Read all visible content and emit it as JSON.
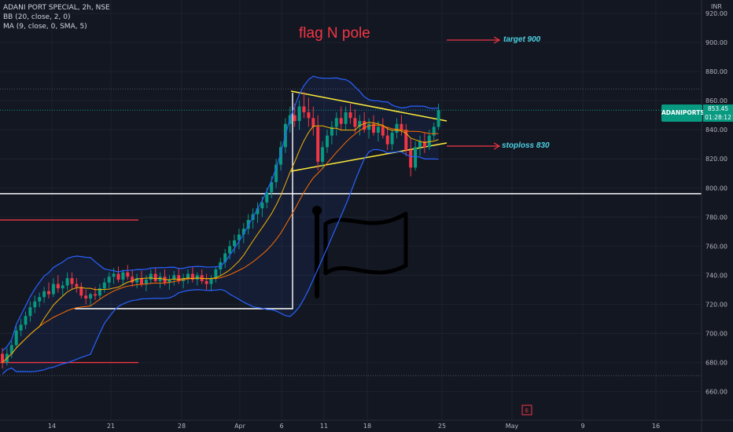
{
  "legend": {
    "line1": "ADANI PORT SPECIAL, 2h, NSE",
    "line2": "BB (20, close, 2, 0)",
    "line3": "MA (9, close, 0, SMA, 5)"
  },
  "annotations": {
    "title": "flag N pole",
    "target": "target 900",
    "stoploss": "stoploss 830"
  },
  "currency": "INR",
  "symbol_badge": "ADANIPORTS",
  "price_badge": {
    "price": "853.45",
    "countdown": "01:28:12"
  },
  "events_marker": "E",
  "colors": {
    "background": "#131722",
    "up": "#089981",
    "down": "#f23645",
    "bb_band": "#2962ff",
    "ma": "#f7b500",
    "bb_basis": "#ff6d00",
    "trendline": "#ffeb3b",
    "annotation_red": "#f23645",
    "annotation_cyan": "#4dd0e1"
  },
  "chart_data": {
    "type": "candlestick",
    "title": "",
    "symbol": "ADANI PORT SPECIAL, 2h, NSE",
    "x_tick_labels": [
      "14",
      "21",
      "28",
      "Apr",
      "6",
      "11",
      "18",
      "25",
      "May",
      "9",
      "16"
    ],
    "y_tick_labels": [
      "660.00",
      "680.00",
      "700.00",
      "720.00",
      "740.00",
      "760.00",
      "780.00",
      "800.00",
      "820.00",
      "840.00",
      "860.00",
      "880.00",
      "900.00",
      "920.00"
    ],
    "ylim": [
      649,
      927
    ],
    "last_price": 853.45,
    "horizontal_levels": [
      {
        "value": 796,
        "color": "#ffffff",
        "style": "solid"
      },
      {
        "value": 778,
        "color": "#f23645",
        "style": "segment"
      },
      {
        "value": 680,
        "color": "#f23645",
        "style": "segment"
      }
    ],
    "candles": [
      [
        686,
        690,
        676,
        680
      ],
      [
        680,
        690,
        678,
        686
      ],
      [
        686,
        695,
        683,
        692
      ],
      [
        692,
        705,
        690,
        702
      ],
      [
        702,
        710,
        698,
        706
      ],
      [
        706,
        715,
        703,
        712
      ],
      [
        712,
        722,
        708,
        718
      ],
      [
        718,
        726,
        714,
        722
      ],
      [
        722,
        728,
        718,
        725
      ],
      [
        725,
        732,
        721,
        729
      ],
      [
        729,
        735,
        724,
        727
      ],
      [
        727,
        738,
        725,
        734
      ],
      [
        734,
        740,
        728,
        731
      ],
      [
        731,
        736,
        726,
        733
      ],
      [
        733,
        742,
        730,
        738
      ],
      [
        738,
        742,
        730,
        734
      ],
      [
        734,
        738,
        728,
        732
      ],
      [
        732,
        735,
        724,
        726
      ],
      [
        726,
        730,
        720,
        724
      ],
      [
        724,
        728,
        719,
        727
      ],
      [
        727,
        732,
        723,
        726
      ],
      [
        726,
        734,
        724,
        731
      ],
      [
        731,
        738,
        728,
        735
      ],
      [
        735,
        742,
        731,
        739
      ],
      [
        739,
        745,
        734,
        741
      ],
      [
        741,
        746,
        735,
        737
      ],
      [
        737,
        744,
        733,
        742
      ],
      [
        742,
        747,
        737,
        739
      ],
      [
        739,
        744,
        732,
        735
      ],
      [
        735,
        741,
        731,
        738
      ],
      [
        738,
        743,
        732,
        734
      ],
      [
        734,
        740,
        729,
        737
      ],
      [
        737,
        744,
        734,
        741
      ],
      [
        741,
        745,
        735,
        736
      ],
      [
        736,
        742,
        731,
        739
      ],
      [
        739,
        744,
        733,
        735
      ],
      [
        735,
        740,
        730,
        737
      ],
      [
        737,
        743,
        733,
        740
      ],
      [
        740,
        745,
        734,
        736
      ],
      [
        736,
        741,
        731,
        738
      ],
      [
        738,
        744,
        734,
        741
      ],
      [
        741,
        746,
        735,
        737
      ],
      [
        737,
        742,
        733,
        740
      ],
      [
        740,
        744,
        734,
        736
      ],
      [
        736,
        741,
        730,
        734
      ],
      [
        734,
        740,
        729,
        738
      ],
      [
        738,
        746,
        735,
        744
      ],
      [
        744,
        752,
        740,
        749
      ],
      [
        749,
        758,
        745,
        755
      ],
      [
        755,
        764,
        751,
        760
      ],
      [
        760,
        768,
        755,
        764
      ],
      [
        764,
        772,
        758,
        768
      ],
      [
        768,
        776,
        762,
        772
      ],
      [
        772,
        782,
        768,
        778
      ],
      [
        778,
        786,
        772,
        782
      ],
      [
        782,
        790,
        776,
        786
      ],
      [
        786,
        794,
        780,
        790
      ],
      [
        790,
        800,
        786,
        797
      ],
      [
        797,
        808,
        793,
        804
      ],
      [
        804,
        820,
        800,
        816
      ],
      [
        816,
        832,
        812,
        828
      ],
      [
        828,
        848,
        824,
        844
      ],
      [
        844,
        856,
        838,
        850
      ],
      [
        850,
        858,
        842,
        846
      ],
      [
        846,
        860,
        840,
        856
      ],
      [
        856,
        866,
        848,
        852
      ],
      [
        852,
        862,
        842,
        848
      ],
      [
        848,
        856,
        836,
        842
      ],
      [
        842,
        850,
        812,
        818
      ],
      [
        818,
        832,
        814,
        828
      ],
      [
        828,
        840,
        824,
        836
      ],
      [
        836,
        846,
        830,
        842
      ],
      [
        842,
        852,
        836,
        848
      ],
      [
        848,
        856,
        840,
        844
      ],
      [
        844,
        856,
        840,
        852
      ],
      [
        852,
        858,
        844,
        848
      ],
      [
        848,
        854,
        838,
        842
      ],
      [
        842,
        850,
        836,
        846
      ],
      [
        846,
        852,
        838,
        840
      ],
      [
        840,
        848,
        834,
        844
      ],
      [
        844,
        850,
        836,
        838
      ],
      [
        838,
        846,
        832,
        842
      ],
      [
        842,
        848,
        834,
        836
      ],
      [
        836,
        842,
        826,
        830
      ],
      [
        830,
        840,
        826,
        838
      ],
      [
        838,
        848,
        834,
        844
      ],
      [
        844,
        850,
        836,
        840
      ],
      [
        840,
        844,
        822,
        826
      ],
      [
        826,
        834,
        808,
        814
      ],
      [
        814,
        832,
        812,
        828
      ],
      [
        828,
        836,
        822,
        832
      ],
      [
        832,
        838,
        824,
        828
      ],
      [
        828,
        840,
        826,
        836
      ],
      [
        836,
        845,
        833,
        842
      ],
      [
        842,
        858,
        840,
        853.45
      ]
    ]
  }
}
